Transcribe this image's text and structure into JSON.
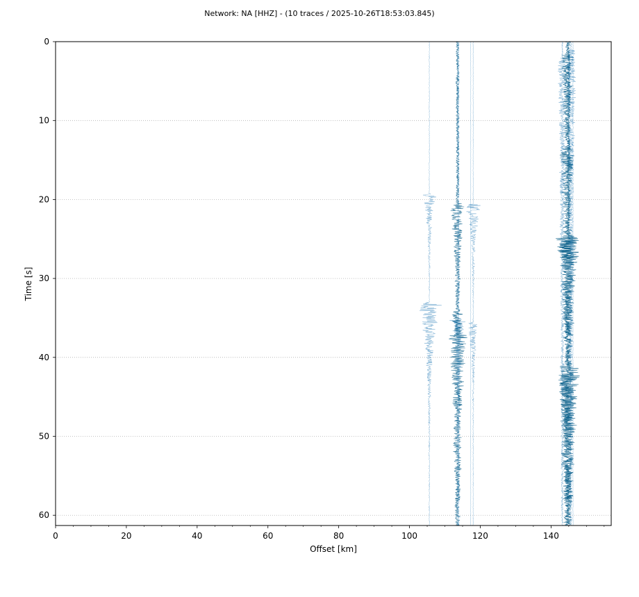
{
  "chart_data": {
    "type": "line",
    "title": "Network: NA [HHZ] - (10 traces / 2025-10-26T18:53:03.845)",
    "xlabel": "Offset [km]",
    "ylabel": "Time [s]",
    "xlim": [
      0,
      157
    ],
    "ylim": [
      61.3,
      0
    ],
    "y_inverted": true,
    "x_ticks": [
      0,
      20,
      40,
      60,
      80,
      100,
      120,
      140
    ],
    "x_tick_labels": [
      "0",
      "20",
      "40",
      "60",
      "80",
      "100",
      "120",
      "140"
    ],
    "y_ticks": [
      0,
      10,
      20,
      30,
      40,
      50,
      60
    ],
    "y_tick_labels": [
      "0",
      "10",
      "20",
      "30",
      "40",
      "50",
      "60"
    ],
    "grid": "horizontal dotted",
    "legend": "none",
    "trace_color": "#1f77b4",
    "trace_color_dark": "#0a5f8a",
    "series": [
      {
        "offset": 105.6,
        "start": 0.0,
        "end": 61.3,
        "base": 0.15,
        "bursts": [
          [
            18.5,
            0.0,
            0.8
          ],
          [
            19.2,
            2.2,
            3.5
          ],
          [
            33.0,
            4.0,
            5.0
          ],
          [
            36.5,
            2.0,
            3.0
          ]
        ]
      },
      {
        "offset": 113.6,
        "start": 0.0,
        "end": 61.3,
        "base": 0.55,
        "bursts": [
          [
            19.8,
            0.0,
            1.2
          ],
          [
            20.5,
            2.2,
            5.0
          ],
          [
            34.0,
            1.5,
            6.5
          ],
          [
            37.0,
            3.0,
            8.0
          ],
          [
            42.0,
            1.5,
            7.0
          ],
          [
            50.0,
            1.0,
            8.0
          ]
        ]
      },
      {
        "offset": 113.8,
        "start": 0.0,
        "end": 61.3,
        "base": 0.35,
        "bursts": [
          [
            20.0,
            0.0,
            2.0
          ],
          [
            35.0,
            2.5,
            4.0
          ]
        ]
      },
      {
        "offset": 117.3,
        "start": 0.0,
        "end": 61.3,
        "base": 0.08,
        "bursts": []
      },
      {
        "offset": 118.0,
        "start": 0.0,
        "end": 61.3,
        "base": 0.12,
        "bursts": [
          [
            19.8,
            0.0,
            1.0
          ],
          [
            20.5,
            2.4,
            4.0
          ],
          [
            35.5,
            1.8,
            4.0
          ]
        ]
      },
      {
        "offset": 143.2,
        "start": 0.0,
        "end": 61.3,
        "base": 0.25,
        "bursts": [
          [
            2.0,
            1.2,
            30.0
          ]
        ]
      },
      {
        "offset": 144.6,
        "start": 0.0,
        "end": 61.3,
        "base": 0.6,
        "bursts": [
          [
            1.5,
            1.5,
            12.0
          ],
          [
            13.5,
            2.0,
            10.0
          ],
          [
            24.5,
            3.2,
            7.0
          ],
          [
            41.0,
            3.0,
            6.0
          ],
          [
            48.0,
            2.0,
            10.0
          ]
        ]
      },
      {
        "offset": 145.0,
        "start": 0.0,
        "end": 61.3,
        "base": 0.5,
        "bursts": [
          [
            24.2,
            0.0,
            2.0
          ],
          [
            25.0,
            3.4,
            9.0
          ],
          [
            42.0,
            3.6,
            8.0
          ],
          [
            47.5,
            2.5,
            10.0
          ]
        ]
      },
      {
        "offset": 145.6,
        "start": 0.0,
        "end": 61.3,
        "base": 0.3,
        "bursts": [
          [
            1.0,
            1.5,
            20.0
          ]
        ]
      },
      {
        "offset": 146.2,
        "start": 0.0,
        "end": 61.3,
        "base": 0.1,
        "bursts": []
      }
    ]
  }
}
